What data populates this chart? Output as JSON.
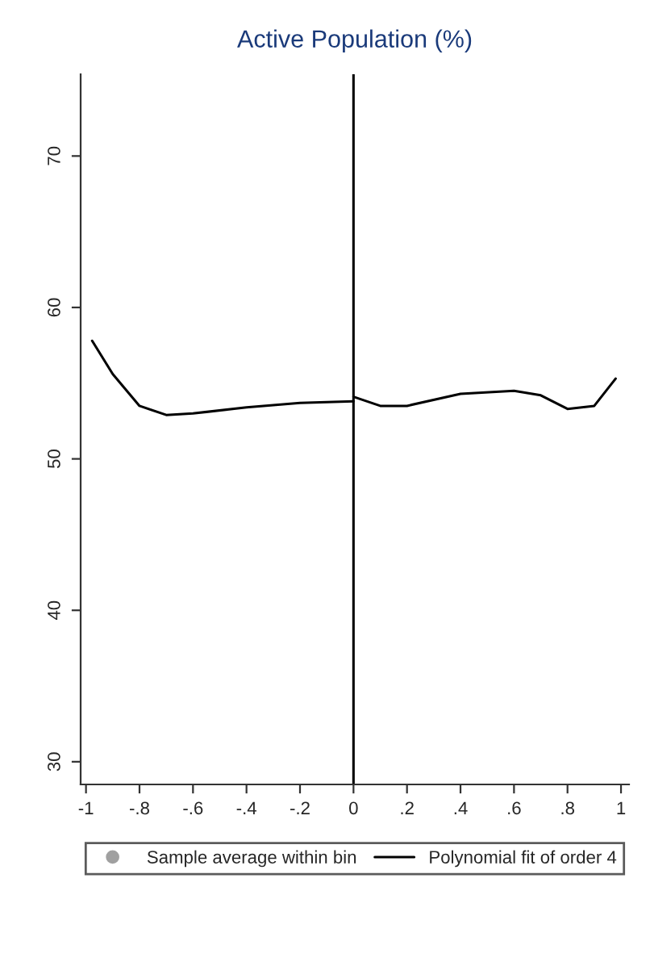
{
  "chart_data": {
    "type": "line",
    "title": "Active Population (%)",
    "legend": "bottom",
    "grid": false,
    "xlim": [
      -1.02,
      1.03
    ],
    "xticks": [
      {
        "value": -1,
        "label": "-1"
      },
      {
        "value": -0.8,
        "label": "-.8"
      },
      {
        "value": -0.6,
        "label": "-.6"
      },
      {
        "value": -0.4,
        "label": "-.4"
      },
      {
        "value": -0.2,
        "label": "-.2"
      },
      0,
      {
        "value": 0.2,
        "label": ".2"
      },
      {
        "value": 0.4,
        "label": ".4"
      },
      {
        "value": 0.6,
        "label": ".6"
      },
      {
        "value": 0.8,
        "label": ".8"
      },
      1
    ],
    "ylim": [
      28.5,
      75.4
    ],
    "yticks": [
      30,
      40,
      50,
      60,
      70
    ],
    "ref_lines": [
      {
        "axis": "x",
        "value": 0,
        "color": "#000000"
      }
    ],
    "series": [
      {
        "name": "Sample average within bin",
        "type": "scatter",
        "color": "#a0a0a0",
        "marker": "circle"
      },
      {
        "name": "Polynomial fit of order 4",
        "color": "#000000",
        "x": [
          -0.977,
          -0.9,
          -0.8,
          -0.7,
          -0.6,
          -0.4,
          -0.2,
          0
        ],
        "values": [
          57.8,
          55.6,
          53.5,
          52.9,
          53.0,
          53.4,
          53.7,
          53.8
        ]
      },
      {
        "color": "#000000",
        "x": [
          0,
          0.1,
          0.2,
          0.4,
          0.6,
          0.7,
          0.8,
          0.9,
          0.98
        ],
        "values": [
          54.1,
          53.5,
          53.5,
          54.3,
          54.5,
          54.2,
          53.3,
          53.5,
          55.3
        ]
      }
    ]
  }
}
